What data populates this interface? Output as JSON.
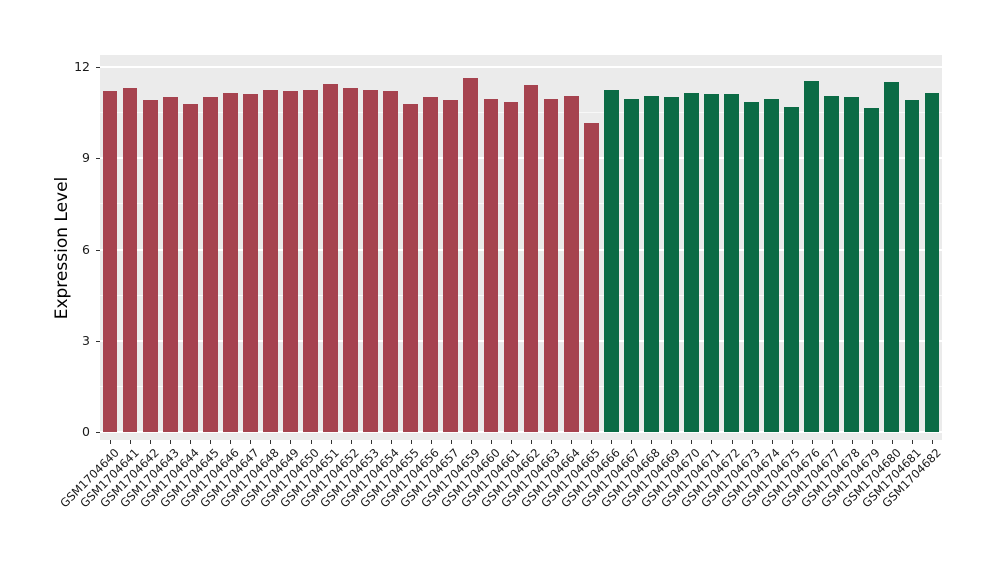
{
  "chart_data": {
    "type": "bar",
    "title": "",
    "xlabel": "",
    "ylabel": "Expression Level",
    "ylim": [
      0,
      12
    ],
    "yticks": [
      0,
      3,
      6,
      9,
      12
    ],
    "yticks_minor": [
      1.5,
      4.5,
      7.5,
      10.5
    ],
    "grid": "on",
    "legend": "none",
    "panel_background": "#EBEBEB",
    "gridline_color": "#FFFFFF",
    "group_colors": [
      "#A6434F",
      "#0B6B45"
    ],
    "group_split_index": 25,
    "categories": [
      "GSM1704640",
      "GSM1704641",
      "GSM1704642",
      "GSM1704643",
      "GSM1704644",
      "GSM1704645",
      "GSM1704646",
      "GSM1704647",
      "GSM1704648",
      "GSM1704649",
      "GSM1704650",
      "GSM1704651",
      "GSM1704652",
      "GSM1704653",
      "GSM1704654",
      "GSM1704655",
      "GSM1704656",
      "GSM1704657",
      "GSM1704659",
      "GSM1704660",
      "GSM1704661",
      "GSM1704662",
      "GSM1704663",
      "GSM1704664",
      "GSM1704665",
      "GSM1704666",
      "GSM1704667",
      "GSM1704668",
      "GSM1704669",
      "GSM1704670",
      "GSM1704671",
      "GSM1704672",
      "GSM1704673",
      "GSM1704674",
      "GSM1704675",
      "GSM1704676",
      "GSM1704677",
      "GSM1704678",
      "GSM1704679",
      "GSM1704680",
      "GSM1704681",
      "GSM1704682"
    ],
    "values": [
      11.2,
      11.3,
      10.9,
      11.0,
      10.8,
      11.0,
      11.15,
      11.1,
      11.25,
      11.2,
      11.25,
      11.45,
      11.3,
      11.25,
      11.2,
      10.8,
      11.0,
      10.9,
      11.65,
      10.95,
      10.85,
      11.4,
      10.95,
      11.05,
      10.15,
      11.25,
      10.95,
      11.05,
      11.0,
      11.15,
      11.1,
      11.1,
      10.85,
      10.95,
      10.7,
      11.55,
      11.05,
      11.0,
      10.65,
      11.5,
      10.9,
      11.15
    ]
  }
}
